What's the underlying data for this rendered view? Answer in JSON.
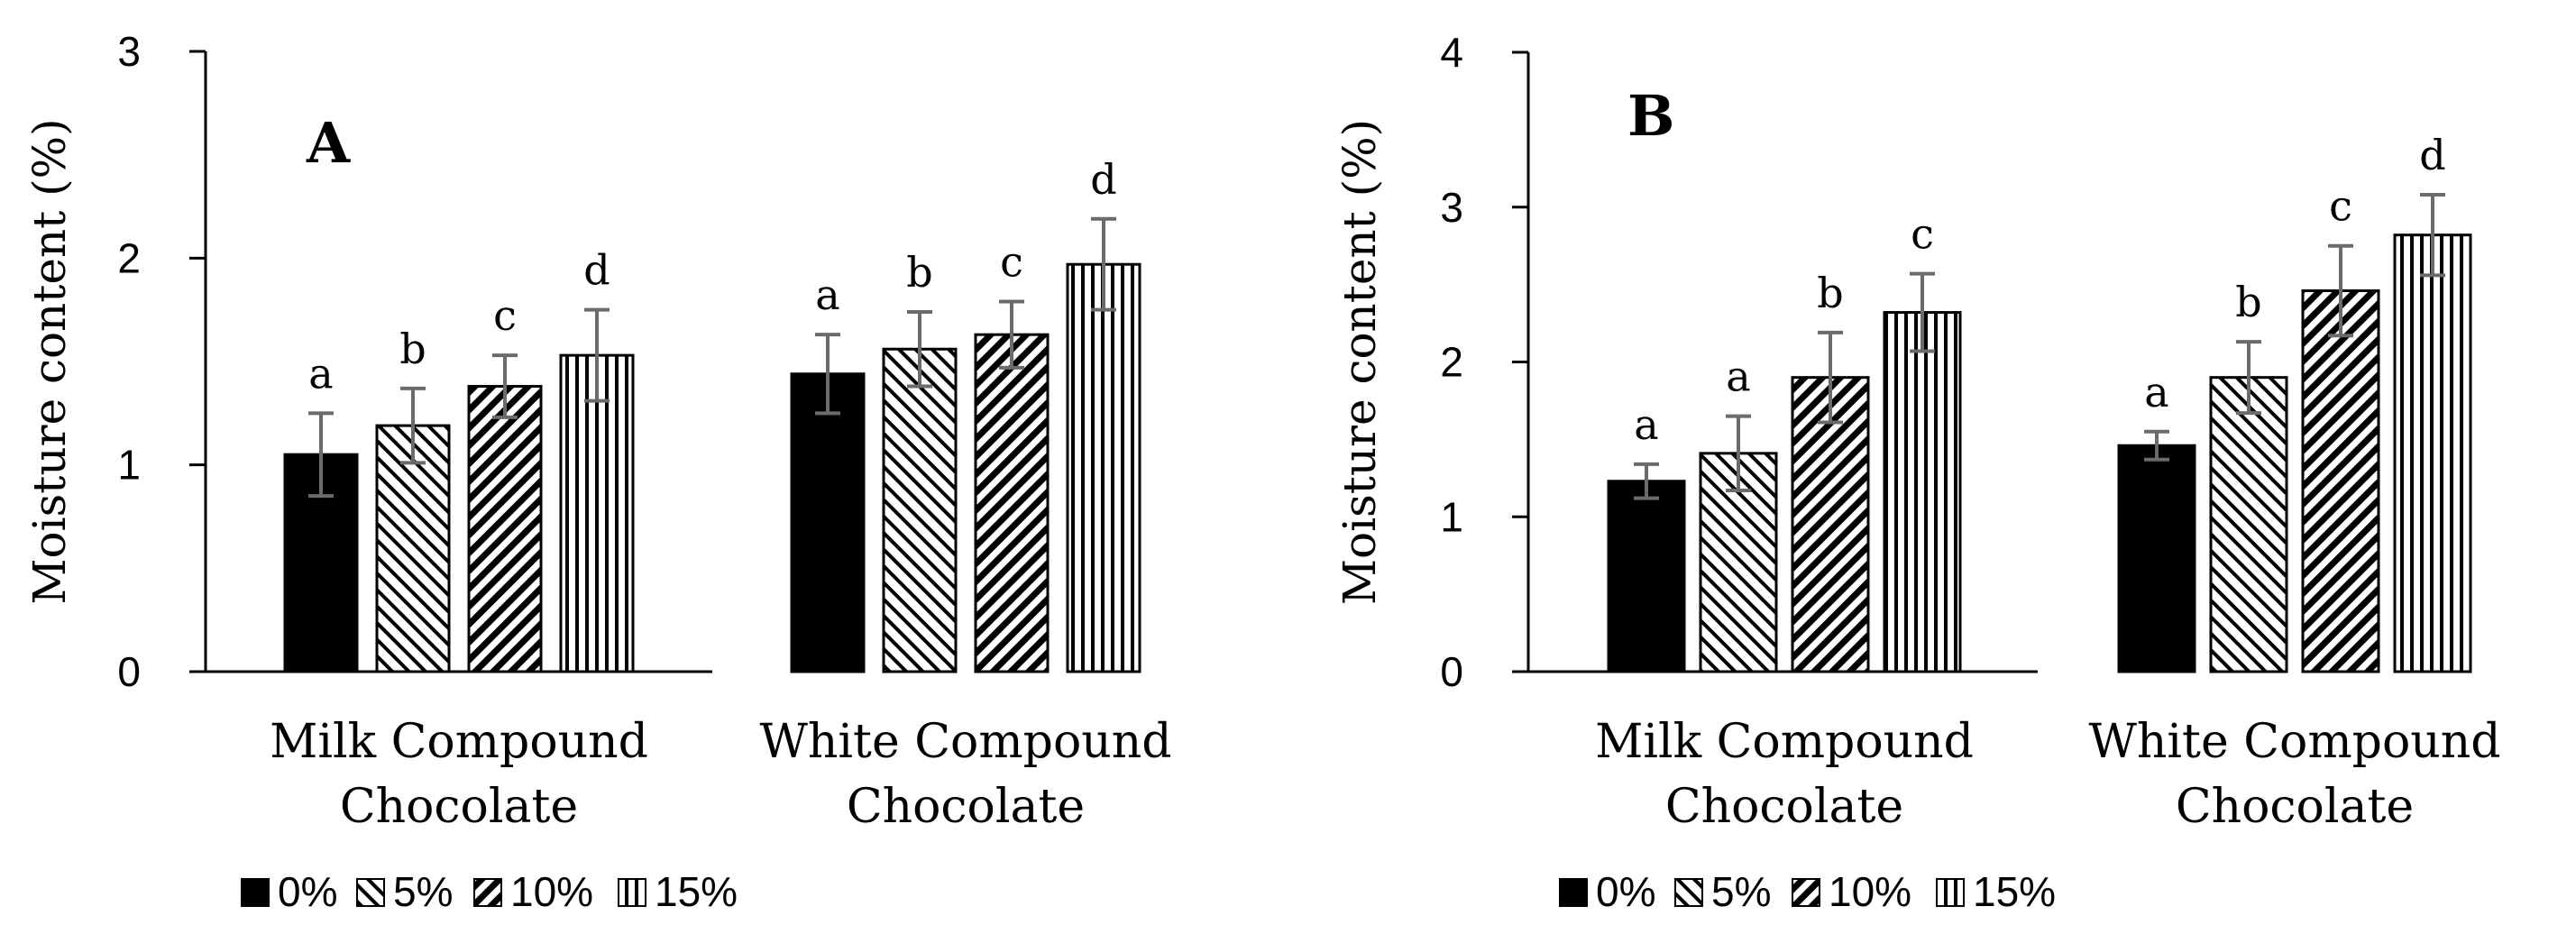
{
  "chart_data": [
    {
      "type": "bar",
      "panel_label": "A",
      "ylabel": "Moisture content (%)",
      "ylim": [
        0,
        3
      ],
      "yticks": [
        "0",
        "1",
        "2",
        "3"
      ],
      "categories": [
        {
          "line1": "Milk Compound",
          "line2": "Chocolate"
        },
        {
          "line1": "White Compound",
          "line2": "Chocolate"
        }
      ],
      "series": [
        {
          "name": "0%",
          "values": [
            1.05,
            1.44
          ],
          "errors": [
            0.2,
            0.19
          ],
          "letters": [
            "a",
            "a"
          ],
          "pattern": "solid"
        },
        {
          "name": "5%",
          "values": [
            1.19,
            1.56
          ],
          "errors": [
            0.18,
            0.18
          ],
          "letters": [
            "b",
            "b"
          ],
          "pattern": "diag-thin"
        },
        {
          "name": "10%",
          "values": [
            1.38,
            1.63
          ],
          "errors": [
            0.15,
            0.16
          ],
          "letters": [
            "c",
            "c"
          ],
          "pattern": "diag-thick"
        },
        {
          "name": "15%",
          "values": [
            1.53,
            1.97
          ],
          "errors": [
            0.22,
            0.22
          ],
          "letters": [
            "d",
            "d"
          ],
          "pattern": "vertical"
        }
      ]
    },
    {
      "type": "bar",
      "panel_label": "B",
      "ylabel": "Moisture content (%)",
      "ylim": [
        0,
        4
      ],
      "yticks": [
        "0",
        "1",
        "2",
        "3",
        "4"
      ],
      "categories": [
        {
          "line1": "Milk Compound",
          "line2": "Chocolate"
        },
        {
          "line1": "White Compound",
          "line2": "Chocolate"
        }
      ],
      "series": [
        {
          "name": "0%",
          "values": [
            1.23,
            1.46
          ],
          "errors": [
            0.11,
            0.09
          ],
          "letters": [
            "a",
            "a"
          ],
          "pattern": "solid"
        },
        {
          "name": "5%",
          "values": [
            1.41,
            1.9
          ],
          "errors": [
            0.24,
            0.23
          ],
          "letters": [
            "a",
            "b"
          ],
          "pattern": "diag-thin"
        },
        {
          "name": "10%",
          "values": [
            1.9,
            2.46
          ],
          "errors": [
            0.29,
            0.29
          ],
          "letters": [
            "b",
            "c"
          ],
          "pattern": "diag-thick"
        },
        {
          "name": "15%",
          "values": [
            2.32,
            2.82
          ],
          "errors": [
            0.25,
            0.26
          ],
          "letters": [
            "c",
            "d"
          ],
          "pattern": "vertical"
        }
      ]
    }
  ]
}
